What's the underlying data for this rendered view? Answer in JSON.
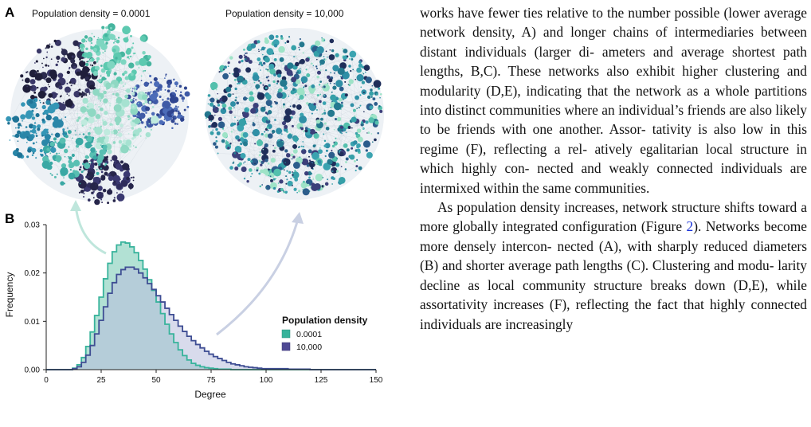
{
  "panel_labels": {
    "a": "A",
    "b": "B"
  },
  "networks": {
    "left_title": "Population density = 0.0001",
    "right_title": "Population density = 10,000"
  },
  "colors": {
    "low_density_fill": "#a5dccd",
    "low_density_line": "#37b39b",
    "high_density_fill": "#b8bedd",
    "high_density_line": "#3e4d93",
    "overlap_fill": "#8fb6c2",
    "arrow_left": "#bfe6dc",
    "arrow_right": "#c9d0e3",
    "link": "#1a33d9"
  },
  "chart_data": {
    "type": "area",
    "xlabel": "Degree",
    "ylabel": "Frequency",
    "xlim": [
      0,
      150
    ],
    "ylim": [
      0,
      0.03
    ],
    "xticks": [
      0,
      25,
      50,
      75,
      100,
      125,
      150
    ],
    "yticks": [
      "0.00",
      "0.01",
      "0.02",
      "0.03"
    ],
    "legend": {
      "title": "Population density",
      "placement": "right"
    },
    "series": [
      {
        "name": "0.0001",
        "x": [
          0,
          2,
          4,
          6,
          8,
          10,
          12,
          14,
          16,
          18,
          20,
          22,
          24,
          26,
          28,
          30,
          32,
          34,
          36,
          38,
          40,
          42,
          44,
          46,
          48,
          50,
          52,
          54,
          56,
          58,
          60,
          62,
          64,
          66,
          68,
          70,
          72,
          74,
          76,
          78,
          80,
          82,
          84,
          86,
          88,
          90,
          92,
          94,
          96,
          98,
          100,
          110,
          120,
          130,
          140,
          150
        ],
        "values": [
          0,
          0,
          0,
          0,
          0,
          0,
          0.0003,
          0.001,
          0.0025,
          0.0048,
          0.0078,
          0.0112,
          0.015,
          0.0188,
          0.022,
          0.0244,
          0.0258,
          0.0264,
          0.0262,
          0.0254,
          0.0242,
          0.0226,
          0.0208,
          0.0186,
          0.0164,
          0.014,
          0.0116,
          0.0094,
          0.0074,
          0.0056,
          0.0041,
          0.0029,
          0.002,
          0.0013,
          0.0009,
          0.0006,
          0.0004,
          0.0003,
          0.0002,
          0.0001,
          0.0001,
          0.0001,
          0,
          0,
          0,
          0,
          0,
          0,
          0,
          0,
          0,
          0,
          0,
          0,
          0,
          0
        ]
      },
      {
        "name": "10,000",
        "x": [
          0,
          2,
          4,
          6,
          8,
          10,
          12,
          14,
          16,
          18,
          20,
          22,
          24,
          26,
          28,
          30,
          32,
          34,
          36,
          38,
          40,
          42,
          44,
          46,
          48,
          50,
          52,
          54,
          56,
          58,
          60,
          62,
          64,
          66,
          68,
          70,
          72,
          74,
          76,
          78,
          80,
          82,
          84,
          86,
          88,
          90,
          92,
          94,
          96,
          98,
          100,
          110,
          120,
          130,
          140,
          150
        ],
        "values": [
          0,
          0,
          0,
          0,
          0,
          0,
          0.0002,
          0.0006,
          0.0015,
          0.003,
          0.005,
          0.0074,
          0.0102,
          0.013,
          0.0158,
          0.018,
          0.0197,
          0.0207,
          0.0212,
          0.0212,
          0.0208,
          0.02,
          0.019,
          0.0178,
          0.0166,
          0.0153,
          0.014,
          0.0127,
          0.0114,
          0.0102,
          0.009,
          0.0079,
          0.0069,
          0.006,
          0.0052,
          0.0045,
          0.0038,
          0.0032,
          0.0027,
          0.0023,
          0.0019,
          0.0015,
          0.0012,
          0.001,
          0.0008,
          0.0006,
          0.0005,
          0.0004,
          0.0003,
          0.0002,
          0.0002,
          0.0001,
          0,
          0,
          0,
          0
        ]
      }
    ]
  },
  "paragraphs": [
    {
      "lines": [
        "works have fewer ties relative to the number possible",
        "(lower average network density, A) and longer chains",
        "of intermediaries between distant individuals (larger di-",
        "ameters and average shortest path lengths, B,C). These",
        "networks also exhibit higher clustering and modularity",
        "(D,E), indicating that the network as a whole partitions",
        "into distinct communities where an individual’s friends",
        "are also likely to be friends with one another.  Assor-",
        "tativity is also low in this regime (F), reflecting a rel-",
        "atively egalitarian local structure in which highly con-",
        "nected and weakly connected individuals are intermixed",
        "within the same communities."
      ]
    },
    {
      "lines": [
        "As population density increases, network structure",
        "shifts toward a more globally integrated configuration",
        "(Figure 2).  Networks become more densely intercon-",
        "nected (A), with sharply reduced diameters (B) and",
        "shorter average path lengths (C). Clustering and modu-",
        "larity decline as local community structure breaks down",
        "(D,E), while assortativity increases (F), reflecting the",
        "fact that highly connected individuals are increasingly"
      ]
    }
  ],
  "figure_ref": {
    "text": "2",
    "line_index": 2
  }
}
